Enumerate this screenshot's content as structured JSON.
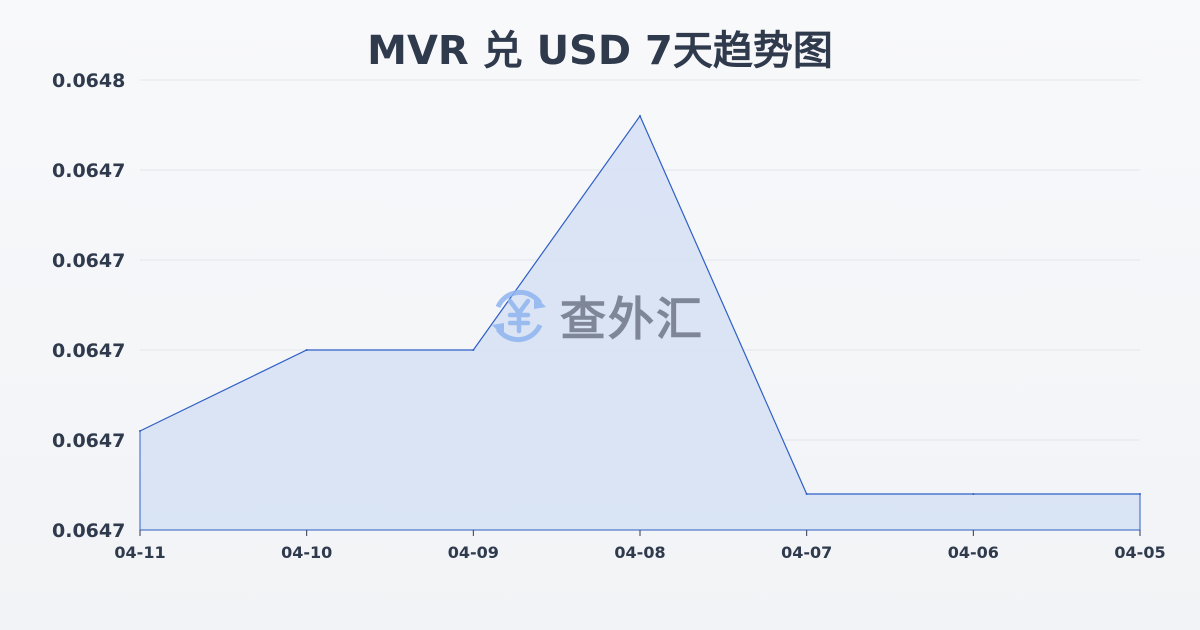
{
  "chart_data": {
    "type": "area",
    "title": "MVR 兑 USD 7天趋势图",
    "categories": [
      "04-11",
      "04-10",
      "04-09",
      "04-08",
      "04-07",
      "04-06",
      "04-05"
    ],
    "series": [
      {
        "values": [
          0.064711,
          0.06472,
          0.06472,
          0.064746,
          0.064704,
          0.064704,
          0.064704
        ]
      }
    ],
    "ylim": [
      0.0647,
      0.06475
    ],
    "yticks": [
      0.0647,
      0.06471,
      0.06472,
      0.06473,
      0.06474,
      0.06475
    ],
    "ytick_labels": [
      "0.0647",
      "0.0647",
      "0.0647",
      "0.0647",
      "0.0647",
      "0.0648"
    ],
    "grid": true,
    "line_color": "#2f5fc6",
    "fill_color": "#d5e0f5"
  },
  "watermark": {
    "text": "查外汇",
    "icon": "yen-exchange-icon"
  }
}
